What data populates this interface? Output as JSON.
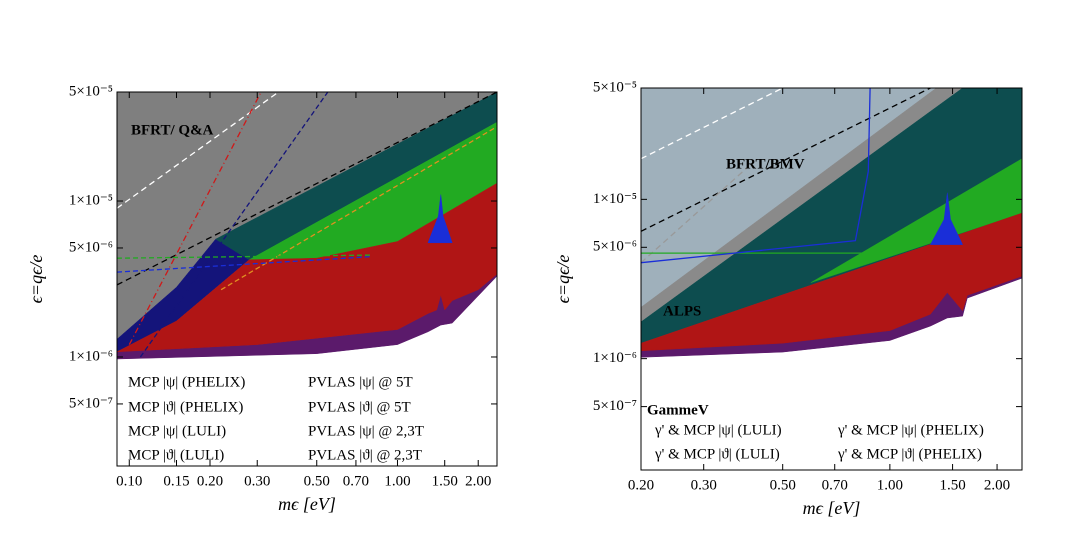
{
  "chart_data": [
    {
      "type": "exclusion",
      "x_label": "mϵ [eV]",
      "y_label": "ϵ=qϵ/e",
      "log_x": true,
      "log_y": true,
      "xlim": [
        0.09,
        2.35
      ],
      "ylim": [
        2e-07,
        5e-05
      ],
      "xticks": [
        {
          "value": 0.1,
          "label": "0.10"
        },
        {
          "value": 0.15,
          "label": "0.15"
        },
        {
          "value": 0.2,
          "label": "0.20"
        },
        {
          "value": 0.3,
          "label": "0.30"
        },
        {
          "value": 0.5,
          "label": "0.50"
        },
        {
          "value": 0.7,
          "label": "0.70"
        },
        {
          "value": 1,
          "label": "1.00"
        },
        {
          "value": 1.5,
          "label": "1.50"
        },
        {
          "value": 2,
          "label": "2.00"
        }
      ],
      "yticks": [
        {
          "value": 5e-05,
          "label": "5×10⁻⁵"
        },
        {
          "value": 1e-05,
          "label": "1×10⁻⁵"
        },
        {
          "value": 5e-06,
          "label": "5×10⁻⁶"
        },
        {
          "value": 1e-06,
          "label": "1×10⁻⁶"
        },
        {
          "value": 5e-07,
          "label": "5×10⁻⁷"
        }
      ],
      "annotations": [
        "BFRT/ Q&A"
      ],
      "legend": [
        {
          "name": "MCP |ψ|  (PHELIX)",
          "color": "#5b1a6b"
        },
        {
          "name": "MCP |ϑ|  (PHELIX)",
          "color": "#b01515"
        },
        {
          "name": "MCP |ψ|  (LULI)",
          "color": "#1a2ed8"
        },
        {
          "name": "MCP |ϑ|  (LULI)",
          "color": "#22aa22"
        },
        {
          "name": "PVLAS |ψ| @  5T",
          "color": "#e09020"
        },
        {
          "name": "PVLAS |ϑ| @ 5T",
          "color": "#14147a"
        },
        {
          "name": "PVLAS |ψ| @  2,3T",
          "color": "#0d4d4f"
        },
        {
          "name": "PVLAS |ϑ| @ 2,3T",
          "color": "#d01818"
        }
      ],
      "regions": [
        {
          "color": "#7f7f7f",
          "x": [
            0.09,
            0.09,
            2.35,
            0.21,
            0.15
          ],
          "values": [
            1.3e-06,
            5e-05,
            5e-05,
            5.7e-06,
            2.8e-06
          ]
        },
        {
          "color": "#14147a",
          "x": [
            0.09,
            0.09,
            0.15,
            0.21,
            0.28,
            0.15
          ],
          "values": [
            1.08e-06,
            1.3e-06,
            2.8e-06,
            5.7e-06,
            4.2e-06,
            1.7e-06
          ]
        },
        {
          "color": "#0d4d4f",
          "x": [
            0.21,
            2.35,
            2.35,
            0.28
          ],
          "values": [
            5.7e-06,
            5e-05,
            3.2e-05,
            4.2e-06
          ]
        },
        {
          "color": "#22aa22",
          "x": [
            0.28,
            2.35,
            2.35,
            1.0,
            0.5
          ],
          "values": [
            4.2e-06,
            3.2e-05,
            1.3e-05,
            5.5e-06,
            4.3e-06
          ]
        },
        {
          "color": "#5b1a6b",
          "x": [
            0.09,
            0.09,
            0.3,
            1.0,
            1.3,
            1.45,
            1.6,
            2.35,
            2.35,
            1.6,
            1.45,
            1.3,
            1.0,
            0.5
          ],
          "values": [
            9.7e-07,
            1.08e-06,
            1.2e-06,
            1.5e-06,
            1.9e-06,
            2.5e-06,
            2.3e-06,
            3.4e-06,
            3.3e-06,
            1.65e-06,
            1.6e-06,
            1.45e-06,
            1.2e-06,
            1.05e-06
          ]
        },
        {
          "color": "#b01515",
          "x": [
            0.09,
            0.15,
            0.28,
            0.5,
            1.0,
            2.35,
            2.35,
            2.0,
            1.6,
            1.5,
            1.45,
            1.4,
            1.3,
            1.0,
            0.3
          ],
          "values": [
            1.08e-06,
            1.7e-06,
            4.2e-06,
            4.3e-06,
            5.5e-06,
            1.3e-05,
            3.4e-06,
            2.7e-06,
            2.3e-06,
            2e-06,
            2.5e-06,
            2e-06,
            1.9e-06,
            1.5e-06,
            1.2e-06
          ]
        },
        {
          "color": "#1a2ed8",
          "x": [
            1.3,
            1.42,
            1.45,
            1.48,
            1.6
          ],
          "values": [
            5.4e-06,
            8e-06,
            1.1e-05,
            8e-06,
            5.4e-06
          ]
        }
      ],
      "lines": [
        {
          "color": "#000000",
          "dash": "6,4",
          "x": [
            0.09,
            2.35
          ],
          "values": [
            2.9e-06,
            5e-05
          ]
        },
        {
          "color": "#ffffff",
          "dash": "6,4",
          "x": [
            0.09,
            0.36
          ],
          "values": [
            9e-06,
            5e-05
          ]
        },
        {
          "color": "#d01818",
          "dash": "6,3,1,3",
          "x": [
            0.1,
            0.31
          ],
          "values": [
            1.2e-06,
            5e-05
          ]
        },
        {
          "color": "#14147a",
          "dash": "5,3",
          "x": [
            0.11,
            0.55
          ],
          "values": [
            1e-06,
            5e-05
          ]
        },
        {
          "color": "#e09020",
          "dash": "5,3",
          "x": [
            0.22,
            2.35
          ],
          "values": [
            2.7e-06,
            3e-05
          ]
        },
        {
          "color": "#22aa22",
          "dash": "5,3",
          "x": [
            0.09,
            0.8
          ],
          "values": [
            4.3e-06,
            4.5e-06
          ]
        },
        {
          "color": "#1a2ed8",
          "dash": "5,3",
          "x": [
            0.09,
            0.8
          ],
          "values": [
            3.5e-06,
            4.4e-06
          ]
        }
      ]
    },
    {
      "type": "exclusion",
      "x_label": "mϵ [eV]",
      "y_label": "ϵ=qϵ/e",
      "log_x": true,
      "log_y": true,
      "xlim": [
        0.2,
        2.35
      ],
      "ylim": [
        2e-07,
        5e-05
      ],
      "xticks": [
        {
          "value": 0.2,
          "label": "0.20"
        },
        {
          "value": 0.3,
          "label": "0.30"
        },
        {
          "value": 0.5,
          "label": "0.50"
        },
        {
          "value": 0.7,
          "label": "0.70"
        },
        {
          "value": 1,
          "label": "1.00"
        },
        {
          "value": 1.5,
          "label": "1.50"
        },
        {
          "value": 2,
          "label": "2.00"
        }
      ],
      "yticks": [
        {
          "value": 5e-05,
          "label": "5×10⁻⁵"
        },
        {
          "value": 1e-05,
          "label": "1×10⁻⁵"
        },
        {
          "value": 5e-06,
          "label": "5×10⁻⁶"
        },
        {
          "value": 1e-06,
          "label": "1×10⁻⁶"
        },
        {
          "value": 5e-07,
          "label": "5×10⁻⁷"
        }
      ],
      "annotations": [
        "BFRT/BMV",
        "ALPS",
        "GammeV"
      ],
      "legend": [
        {
          "name": "γ' & MCP |ψ| (LULI)",
          "color": "#1a2ed8"
        },
        {
          "name": "γ' & MCP |ϑ| (LULI)",
          "color": "#22aa22"
        },
        {
          "name": "γ' & MCP |ψ| (PHELIX)",
          "color": "#5b1a6b"
        },
        {
          "name": "γ' & MCP |ϑ| (PHELIX)",
          "color": "#b01515"
        }
      ],
      "regions": [
        {
          "color": "#9fb0bb",
          "x": [
            0.2,
            0.2,
            1.35
          ],
          "values": [
            2.1e-06,
            5e-05,
            5e-05
          ]
        },
        {
          "color": "#8a8a8a",
          "x": [
            0.2,
            0.2,
            1.35,
            1.6
          ],
          "values": [
            1.7e-06,
            2.1e-06,
            5e-05,
            5e-05
          ]
        },
        {
          "color": "#0d4d4f",
          "x": [
            0.2,
            0.2,
            1.6,
            2.35,
            2.35
          ],
          "values": [
            1.25e-06,
            1.7e-06,
            5e-05,
            5e-05,
            8.2e-06
          ]
        },
        {
          "color": "#22aa22",
          "x": [
            0.6,
            2.35,
            2.35
          ],
          "values": [
            3e-06,
            8.2e-06,
            1.8e-05
          ]
        },
        {
          "color": "#5b1a6b",
          "x": [
            0.2,
            0.5,
            1.0,
            1.3,
            1.45,
            1.6,
            1.65,
            2.35,
            2.35,
            0.2
          ],
          "values": [
            1.02e-06,
            1.1e-06,
            1.3e-06,
            1.6e-06,
            1.8e-06,
            1.85e-06,
            2.4e-06,
            3.2e-06,
            4e-06,
            1.2e-06
          ]
        },
        {
          "color": "#b01515",
          "x": [
            0.2,
            0.2,
            2.35,
            2.35,
            1.65,
            1.6,
            1.45,
            1.3,
            1.0,
            0.5
          ],
          "values": [
            1.12e-06,
            1.25e-06,
            8.2e-06,
            3.3e-06,
            2.5e-06,
            2e-06,
            2.6e-06,
            1.9e-06,
            1.5e-06,
            1.25e-06
          ]
        },
        {
          "color": "#1a2ed8",
          "x": [
            1.3,
            1.42,
            1.45,
            1.48,
            1.6
          ],
          "values": [
            5.2e-06,
            7.5e-06,
            1.1e-05,
            7.5e-06,
            5.2e-06
          ]
        }
      ],
      "lines": [
        {
          "color": "#000000",
          "dash": "6,4",
          "x": [
            0.2,
            1.3
          ],
          "values": [
            6.3e-06,
            5e-05
          ]
        },
        {
          "color": "#ffffff",
          "dash": "6,4",
          "x": [
            0.2,
            0.5
          ],
          "values": [
            1.8e-05,
            5e-05
          ]
        },
        {
          "color": "#999999",
          "dash": "6,4",
          "x": [
            0.2,
            0.4
          ],
          "values": [
            4e-06,
            1.6e-05
          ]
        },
        {
          "color": "#22aa22",
          "dash": "",
          "x": [
            0.2,
            1.0
          ],
          "values": [
            4.6e-06,
            4.6e-06
          ]
        },
        {
          "color": "#1a2ed8",
          "dash": "",
          "x": [
            0.2,
            0.8,
            0.87,
            0.88
          ],
          "values": [
            4e-06,
            5.5e-06,
            1.5e-05,
            5e-05
          ]
        }
      ]
    }
  ]
}
